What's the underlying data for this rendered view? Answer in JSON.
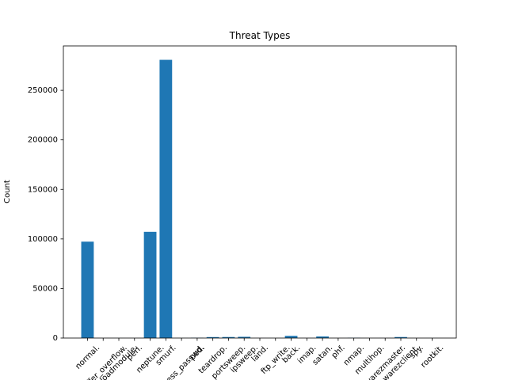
{
  "chart_data": {
    "type": "bar",
    "title": "Threat Types",
    "y_label": "Count",
    "categories": [
      "normal.",
      "buffer_overflow.",
      "loadmodule.",
      "perl.",
      "neptune.",
      "smurf.",
      "guess_passwd.",
      "pod.",
      "teardrop.",
      "portsweep.",
      "ipsweep.",
      "land.",
      "ftp_write.",
      "back.",
      "imap.",
      "satan.",
      "phf.",
      "nmap.",
      "multihop.",
      "warezmaster.",
      "warezclient.",
      "spy.",
      "rootkit."
    ],
    "values": [
      97278,
      30,
      9,
      3,
      107201,
      280790,
      53,
      264,
      979,
      1040,
      1247,
      21,
      8,
      2203,
      12,
      1589,
      4,
      231,
      7,
      20,
      1020,
      2,
      10
    ],
    "color": "#1f77b4",
    "ylim": [
      0,
      294830
    ],
    "yticks": [
      0,
      50000,
      100000,
      150000,
      200000,
      250000
    ]
  }
}
